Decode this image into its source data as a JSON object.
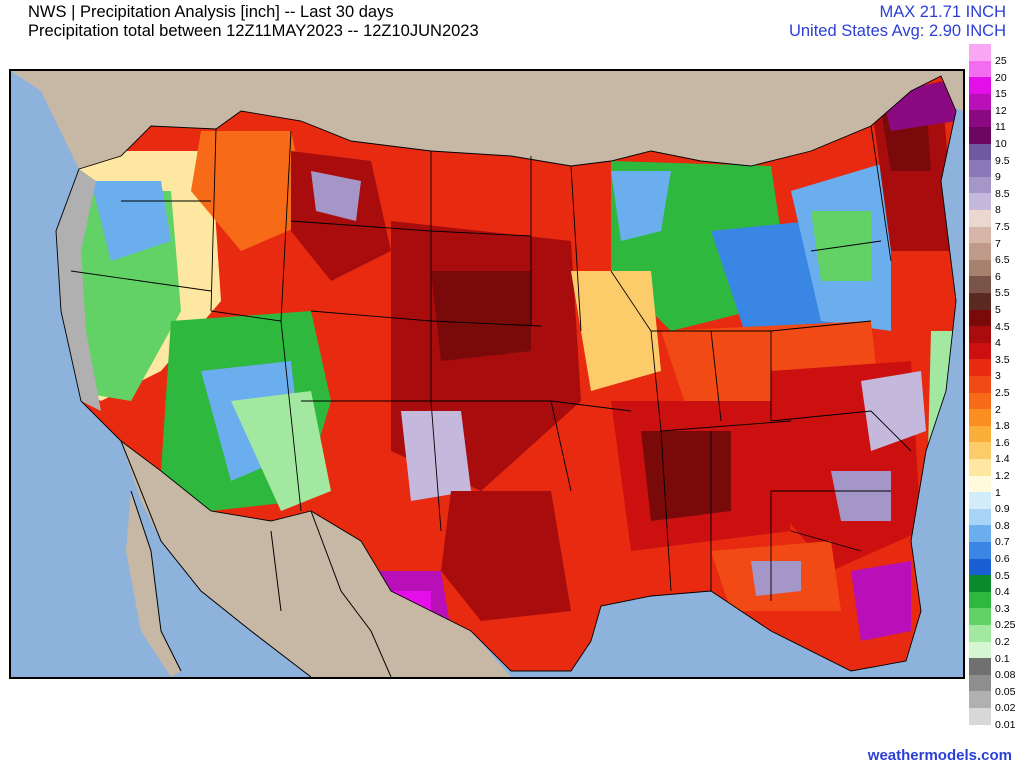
{
  "header": {
    "title_line1": "NWS | Precipitation Analysis [inch] -- Last 30 days",
    "title_line2": "Precipitation total between 12Z11MAY2023 -- 12Z10JUN2023",
    "max_label": "MAX 21.71 INCH",
    "avg_label": "United States Avg: 2.90 INCH"
  },
  "legend": {
    "items": [
      {
        "label": "25",
        "color": "#f9a6f3"
      },
      {
        "label": "20",
        "color": "#f26cf0"
      },
      {
        "label": "15",
        "color": "#e40fe8"
      },
      {
        "label": "12",
        "color": "#b80fb8"
      },
      {
        "label": "11",
        "color": "#8b0a82"
      },
      {
        "label": "10",
        "color": "#6a0660"
      },
      {
        "label": "9.5",
        "color": "#6f5aa0"
      },
      {
        "label": "9",
        "color": "#8a78b8"
      },
      {
        "label": "8.5",
        "color": "#a596c8"
      },
      {
        "label": "8",
        "color": "#c4b8dc"
      },
      {
        "label": "7.5",
        "color": "#ead8d0"
      },
      {
        "label": "7",
        "color": "#d6b6a8"
      },
      {
        "label": "6.5",
        "color": "#c09a8a"
      },
      {
        "label": "6",
        "color": "#a8806e"
      },
      {
        "label": "5.5",
        "color": "#7a5448"
      },
      {
        "label": "5",
        "color": "#5a2a20"
      },
      {
        "label": "4.5",
        "color": "#7a0a0a"
      },
      {
        "label": "4",
        "color": "#a80c0c"
      },
      {
        "label": "3.5",
        "color": "#cc1010"
      },
      {
        "label": "3",
        "color": "#e82a10"
      },
      {
        "label": "2.5",
        "color": "#f24a14"
      },
      {
        "label": "2",
        "color": "#f66a18"
      },
      {
        "label": "1.8",
        "color": "#fa8e20"
      },
      {
        "label": "1.6",
        "color": "#fcae3a"
      },
      {
        "label": "1.4",
        "color": "#fdcc6a"
      },
      {
        "label": "1.2",
        "color": "#fee7a0"
      },
      {
        "label": "1",
        "color": "#fffadc"
      },
      {
        "label": "0.9",
        "color": "#d2ecfa"
      },
      {
        "label": "0.8",
        "color": "#a8d4f6"
      },
      {
        "label": "0.7",
        "color": "#6aaeee"
      },
      {
        "label": "0.6",
        "color": "#3a86e4"
      },
      {
        "label": "0.5",
        "color": "#1c5fd4"
      },
      {
        "label": "0.4",
        "color": "#0a8a2a"
      },
      {
        "label": "0.3",
        "color": "#2eb83e"
      },
      {
        "label": "0.25",
        "color": "#62d266"
      },
      {
        "label": "0.2",
        "color": "#a2e8a0"
      },
      {
        "label": "0.1",
        "color": "#d4f6d0"
      },
      {
        "label": "0.08",
        "color": "#707070"
      },
      {
        "label": "0.05",
        "color": "#8e8e8e"
      },
      {
        "label": "0.02",
        "color": "#b0b0b0"
      },
      {
        "label": "0.01",
        "color": "#d8d8d8"
      }
    ]
  },
  "credit": "weathermodels.com",
  "colors": {
    "ocean": "#8db3dd",
    "land_no_data": "#c7b8a5",
    "header_blue": "#2b3fd6"
  }
}
